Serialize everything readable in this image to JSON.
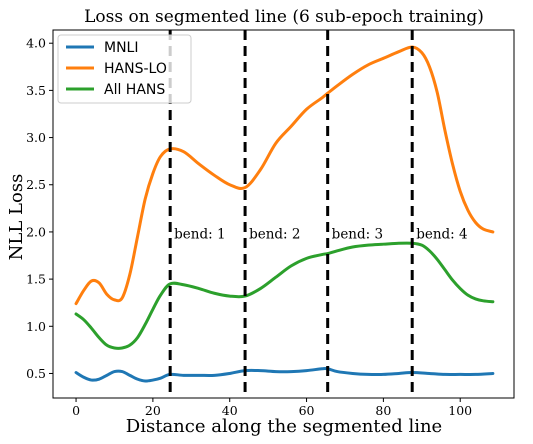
{
  "chart_data": {
    "type": "line",
    "title": "Loss on segmented line (6 sub-epoch training)",
    "xlabel": "Distance along the segmented line",
    "ylabel": "NLL Loss",
    "xlim": [
      -6,
      114
    ],
    "ylim": [
      0.24,
      4.14
    ],
    "xticks": [
      0,
      20,
      40,
      60,
      80,
      100
    ],
    "yticks": [
      0.5,
      1.0,
      1.5,
      2.0,
      2.5,
      3.0,
      3.5,
      4.0
    ],
    "grid": false,
    "legend": "top-left",
    "series": [
      {
        "name": "MNLI",
        "color": "#1f77b4",
        "x": [
          0,
          2,
          4,
          6,
          8,
          10,
          12,
          14,
          16,
          18,
          20,
          22,
          24.5,
          28,
          32,
          36,
          40,
          44,
          48,
          52,
          56,
          60,
          64,
          65.5,
          68,
          72,
          76,
          80,
          84,
          87.5,
          92,
          96,
          100,
          104,
          108.5
        ],
        "y": [
          0.51,
          0.46,
          0.43,
          0.44,
          0.48,
          0.52,
          0.52,
          0.48,
          0.44,
          0.42,
          0.43,
          0.45,
          0.49,
          0.48,
          0.48,
          0.48,
          0.5,
          0.53,
          0.53,
          0.52,
          0.52,
          0.53,
          0.55,
          0.55,
          0.52,
          0.5,
          0.49,
          0.49,
          0.5,
          0.51,
          0.5,
          0.49,
          0.49,
          0.49,
          0.5
        ]
      },
      {
        "name": "HANS-LO",
        "color": "#ff7f0e",
        "x": [
          0,
          2,
          4,
          6,
          8,
          10,
          12,
          14,
          16,
          18,
          20,
          22,
          24.5,
          28,
          32,
          36,
          40,
          44,
          48,
          52,
          56,
          60,
          64,
          65.5,
          68,
          72,
          76,
          80,
          84,
          87.5,
          90,
          92,
          94,
          96,
          98,
          100,
          102,
          104,
          106,
          108.5
        ],
        "y": [
          1.24,
          1.38,
          1.48,
          1.46,
          1.34,
          1.28,
          1.3,
          1.55,
          1.95,
          2.35,
          2.62,
          2.8,
          2.88,
          2.85,
          2.72,
          2.6,
          2.5,
          2.47,
          2.66,
          2.94,
          3.12,
          3.3,
          3.42,
          3.47,
          3.55,
          3.67,
          3.77,
          3.84,
          3.91,
          3.96,
          3.9,
          3.75,
          3.48,
          3.08,
          2.72,
          2.43,
          2.23,
          2.1,
          2.03,
          2.0
        ]
      },
      {
        "name": "All HANS",
        "color": "#2ca02c",
        "x": [
          0,
          2,
          4,
          6,
          8,
          10,
          12,
          14,
          16,
          18,
          20,
          22,
          24.5,
          28,
          32,
          36,
          40,
          44,
          48,
          52,
          56,
          60,
          64,
          65.5,
          68,
          72,
          76,
          80,
          84,
          87.5,
          90,
          92,
          94,
          96,
          98,
          100,
          102,
          104,
          106,
          108.5
        ],
        "y": [
          1.13,
          1.07,
          0.98,
          0.88,
          0.8,
          0.77,
          0.77,
          0.8,
          0.88,
          1.02,
          1.18,
          1.33,
          1.45,
          1.44,
          1.4,
          1.35,
          1.32,
          1.32,
          1.4,
          1.52,
          1.64,
          1.72,
          1.76,
          1.77,
          1.8,
          1.84,
          1.86,
          1.87,
          1.88,
          1.88,
          1.86,
          1.8,
          1.71,
          1.6,
          1.49,
          1.4,
          1.33,
          1.29,
          1.27,
          1.26
        ]
      }
    ],
    "vlines": [
      {
        "x": 24.5,
        "label": "bend: 1",
        "label_y": 1.93
      },
      {
        "x": 44,
        "label": "bend: 2",
        "label_y": 1.93
      },
      {
        "x": 65.5,
        "label": "bend: 3",
        "label_y": 1.93
      },
      {
        "x": 87.5,
        "label": "bend: 4",
        "label_y": 1.93
      }
    ]
  }
}
